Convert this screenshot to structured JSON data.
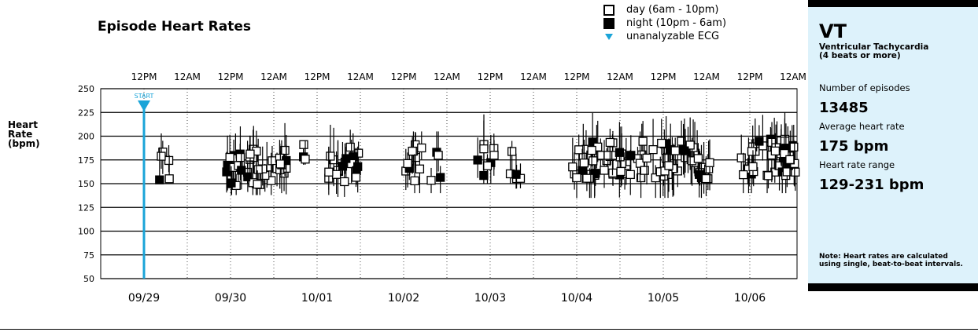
{
  "title": "Episode Heart Rates",
  "ylabel_lines": [
    "Heart",
    "Rate",
    "(bpm)"
  ],
  "legend": {
    "day": "day (6am - 10pm)",
    "night": "night (10pm - 6am)",
    "unanalyzable": "unanalyzable ECG"
  },
  "colors": {
    "marker": "#1aa4d8",
    "panel_bg": "#ddf2fb",
    "data": "#000000"
  },
  "panel": {
    "heading": "VT",
    "subheading_lines": [
      "Ventricular Tachycardia",
      "(4 beats or more)"
    ],
    "stats": [
      {
        "label": "Number of episodes",
        "value": "13485"
      },
      {
        "label": "Average heart rate",
        "value": "175 bpm"
      },
      {
        "label": "Heart rate range",
        "value": "129-231 bpm"
      }
    ],
    "note_lines": [
      "Note: Heart rates are calculated",
      "using single, beat-to-beat intervals."
    ]
  },
  "chart_data": {
    "type": "scatter",
    "y_label": "Heart Rate (bpm)",
    "ylim": [
      50,
      250
    ],
    "yticks": [
      50,
      75,
      100,
      125,
      150,
      175,
      200,
      225,
      250
    ],
    "x_unit": "days since 09/29 00:00",
    "xlim": [
      0,
      8
    ],
    "date_labels": [
      "09/29",
      "09/30",
      "10/01",
      "10/02",
      "10/03",
      "10/04",
      "10/05",
      "10/06"
    ],
    "time_tick_labels": [
      "12PM",
      "12AM",
      "12PM",
      "12AM",
      "12PM",
      "12AM",
      "12PM",
      "12AM",
      "12PM",
      "12AM",
      "12PM",
      "12AM",
      "12PM",
      "12AM",
      "12PM",
      "12AM",
      "12PM"
    ],
    "start_marker": {
      "label": "START",
      "x": 0.5
    },
    "clusters": [
      {
        "x": [
          0.62,
          0.96
        ],
        "y_mid": 172,
        "y_low": 158,
        "y_high": 203,
        "n": 5
      },
      {
        "x": [
          1.45,
          2.15
        ],
        "y_mid": 168,
        "y_low": 138,
        "y_high": 225,
        "n": 42
      },
      {
        "x": [
          2.33,
          2.45
        ],
        "y_mid": 182,
        "y_low": 170,
        "y_high": 195,
        "n": 3
      },
      {
        "x": [
          2.6,
          3.0
        ],
        "y_mid": 170,
        "y_low": 136,
        "y_high": 212,
        "n": 18
      },
      {
        "x": [
          3.5,
          3.95
        ],
        "y_mid": 173,
        "y_low": 140,
        "y_high": 205,
        "n": 14
      },
      {
        "x": [
          4.35,
          4.55
        ],
        "y_mid": 175,
        "y_low": 150,
        "y_high": 225,
        "n": 8
      },
      {
        "x": [
          4.72,
          4.85
        ],
        "y_mid": 175,
        "y_low": 140,
        "y_high": 195,
        "n": 5
      },
      {
        "x": [
          5.45,
          7.05
        ],
        "y_mid": 175,
        "y_low": 135,
        "y_high": 225,
        "n": 85
      },
      {
        "x": [
          7.4,
          8.05
        ],
        "y_mid": 178,
        "y_low": 140,
        "y_high": 231,
        "n": 45
      }
    ]
  }
}
